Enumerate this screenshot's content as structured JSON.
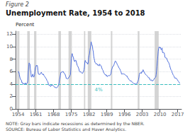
{
  "chart_data": {
    "type": "line",
    "subtitle": "Figure 2",
    "title": "Unemployment Rate, 1954 to 2018",
    "ylabel": "Percent",
    "note": "NOTE: Gray bars indicate recessions as determined by the NBER.\nSOURCE: Bureau of Labor Statistics and Haver Analytics.",
    "xlim": [
      1953.0,
      2018.5
    ],
    "xticks": [
      1954,
      1961,
      1968,
      1975,
      1982,
      1989,
      1996,
      2003,
      2010,
      2017
    ],
    "ylim": [
      0,
      12.5
    ],
    "yticks": [
      0,
      2,
      4,
      6,
      8,
      10,
      12
    ],
    "grid": true,
    "reference_line": {
      "y": 4,
      "label": "4%",
      "color": "#3bbfbf"
    },
    "recessions": {
      "color": "#cccccc",
      "ranges": [
        [
          1953.6,
          1954.5
        ],
        [
          1957.6,
          1958.6
        ],
        [
          1960.3,
          1961.2
        ],
        [
          1969.9,
          1970.9
        ],
        [
          1973.9,
          1975.2
        ],
        [
          1980.0,
          1980.5
        ],
        [
          1981.5,
          1982.9
        ],
        [
          1990.6,
          1991.2
        ],
        [
          2001.2,
          2001.9
        ],
        [
          2007.9,
          2009.5
        ]
      ]
    },
    "x": [
      1954.0,
      1954.17,
      1954.33,
      1954.5,
      1954.67,
      1954.83,
      1955.0,
      1955.17,
      1955.33,
      1955.5,
      1955.67,
      1955.83,
      1956.0,
      1956.17,
      1956.33,
      1956.5,
      1956.67,
      1956.83,
      1957.0,
      1957.17,
      1957.33,
      1957.5,
      1957.67,
      1957.83,
      1958.0,
      1958.17,
      1958.33,
      1958.5,
      1958.67,
      1958.83,
      1959.0,
      1959.17,
      1959.33,
      1959.5,
      1959.67,
      1959.83,
      1960.0,
      1960.17,
      1960.33,
      1960.5,
      1960.67,
      1960.83,
      1961.0,
      1961.17,
      1961.33,
      1961.5,
      1961.67,
      1961.83,
      1962.0,
      1962.17,
      1962.33,
      1962.5,
      1962.67,
      1962.83,
      1963.0,
      1963.17,
      1963.33,
      1963.5,
      1963.67,
      1963.83,
      1964.0,
      1964.17,
      1964.33,
      1964.5,
      1964.67,
      1964.83,
      1965.0,
      1965.17,
      1965.33,
      1965.5,
      1965.67,
      1965.83,
      1966.0,
      1966.17,
      1966.33,
      1966.5,
      1966.67,
      1966.83,
      1967.0,
      1967.17,
      1967.33,
      1967.5,
      1967.67,
      1967.83,
      1968.0,
      1968.17,
      1968.33,
      1968.5,
      1968.67,
      1968.83,
      1969.0,
      1969.17,
      1969.33,
      1969.5,
      1969.67,
      1969.83,
      1970.0,
      1970.17,
      1970.33,
      1970.5,
      1970.67,
      1970.83,
      1971.0,
      1971.17,
      1971.33,
      1971.5,
      1971.67,
      1971.83,
      1972.0,
      1972.17,
      1972.33,
      1972.5,
      1972.67,
      1972.83,
      1973.0,
      1973.17,
      1973.33,
      1973.5,
      1973.67,
      1973.83,
      1974.0,
      1974.17,
      1974.33,
      1974.5,
      1974.67,
      1974.83,
      1975.0,
      1975.17,
      1975.33,
      1975.5,
      1975.67,
      1975.83,
      1976.0,
      1976.17,
      1976.33,
      1976.5,
      1976.67,
      1976.83,
      1977.0,
      1977.17,
      1977.33,
      1977.5,
      1977.67,
      1977.83,
      1978.0,
      1978.17,
      1978.33,
      1978.5,
      1978.67,
      1978.83,
      1979.0,
      1979.17,
      1979.33,
      1979.5,
      1979.67,
      1979.83,
      1980.0,
      1980.17,
      1980.33,
      1980.5,
      1980.67,
      1980.83,
      1981.0,
      1981.17,
      1981.33,
      1981.5,
      1981.67,
      1981.83,
      1982.0,
      1982.17,
      1982.33,
      1982.5,
      1982.67,
      1982.83,
      1983.0,
      1983.17,
      1983.33,
      1983.5,
      1983.67,
      1983.83,
      1984.0,
      1984.17,
      1984.33,
      1984.5,
      1984.67,
      1984.83,
      1985.0,
      1985.17,
      1985.33,
      1985.5,
      1985.67,
      1985.83,
      1986.0,
      1986.17,
      1986.33,
      1986.5,
      1986.67,
      1986.83,
      1987.0,
      1987.17,
      1987.33,
      1987.5,
      1987.67,
      1987.83,
      1988.0,
      1988.17,
      1988.33,
      1988.5,
      1988.67,
      1988.83,
      1989.0,
      1989.17,
      1989.33,
      1989.5,
      1989.67,
      1989.83,
      1990.0,
      1990.17,
      1990.33,
      1990.5,
      1990.67,
      1990.83,
      1991.0,
      1991.17,
      1991.33,
      1991.5,
      1991.67,
      1991.83,
      1992.0,
      1992.17,
      1992.33,
      1992.5,
      1992.67,
      1992.83,
      1993.0,
      1993.17,
      1993.33,
      1993.5,
      1993.67,
      1993.83,
      1994.0,
      1994.17,
      1994.33,
      1994.5,
      1994.67,
      1994.83,
      1995.0,
      1995.17,
      1995.33,
      1995.5,
      1995.67,
      1995.83,
      1996.0,
      1996.17,
      1996.33,
      1996.5,
      1996.67,
      1996.83,
      1997.0,
      1997.17,
      1997.33,
      1997.5,
      1997.67,
      1997.83,
      1998.0,
      1998.17,
      1998.33,
      1998.5,
      1998.67,
      1998.83,
      1999.0,
      1999.17,
      1999.33,
      1999.5,
      1999.67,
      1999.83,
      2000.0,
      2000.17,
      2000.33,
      2000.5,
      2000.67,
      2000.83,
      2001.0,
      2001.17,
      2001.33,
      2001.5,
      2001.67,
      2001.83,
      2002.0,
      2002.17,
      2002.33,
      2002.5,
      2002.67,
      2002.83,
      2003.0,
      2003.17,
      2003.33,
      2003.5,
      2003.67,
      2003.83,
      2004.0,
      2004.17,
      2004.33,
      2004.5,
      2004.67,
      2004.83,
      2005.0,
      2005.17,
      2005.33,
      2005.5,
      2005.67,
      2005.83,
      2006.0,
      2006.17,
      2006.33,
      2006.5,
      2006.67,
      2006.83,
      2007.0,
      2007.17,
      2007.33,
      2007.5,
      2007.67,
      2007.83,
      2008.0,
      2008.17,
      2008.33,
      2008.5,
      2008.67,
      2008.83,
      2009.0,
      2009.17,
      2009.33,
      2009.5,
      2009.67,
      2009.83,
      2010.0,
      2010.17,
      2010.33,
      2010.5,
      2010.67,
      2010.83,
      2011.0,
      2011.17,
      2011.33,
      2011.5,
      2011.67,
      2011.83,
      2012.0,
      2012.17,
      2012.33,
      2012.5,
      2012.67,
      2012.83,
      2013.0,
      2013.17,
      2013.33,
      2013.5,
      2013.67,
      2013.83,
      2014.0,
      2014.17,
      2014.33,
      2014.5,
      2014.67,
      2014.83,
      2015.0,
      2015.17,
      2015.33,
      2015.5,
      2015.67,
      2015.83,
      2016.0,
      2016.17,
      2016.33,
      2016.5,
      2016.67,
      2016.83,
      2017.0,
      2017.17,
      2017.33,
      2017.5,
      2017.67,
      2017.83,
      2018.0
    ],
    "values": [
      5.9,
      6.0,
      5.8,
      5.5,
      5.1,
      4.9,
      4.7,
      4.7,
      4.6,
      4.2,
      4.2,
      4.2,
      4.0,
      4.0,
      4.0,
      4.1,
      4.0,
      4.2,
      4.2,
      3.9,
      4.1,
      4.1,
      4.2,
      4.5,
      5.8,
      6.8,
      7.4,
      7.4,
      7.2,
      6.4,
      6.0,
      5.2,
      5.1,
      5.3,
      5.5,
      5.6,
      5.2,
      5.1,
      5.1,
      5.5,
      6.1,
      6.6,
      6.8,
      7.0,
      6.9,
      7.0,
      6.8,
      6.1,
      5.6,
      5.6,
      5.6,
      5.5,
      5.6,
      5.6,
      5.8,
      5.9,
      5.9,
      5.6,
      5.5,
      5.5,
      5.6,
      5.4,
      5.3,
      5.2,
      5.1,
      5.0,
      4.9,
      4.8,
      4.6,
      4.5,
      4.4,
      4.2,
      3.9,
      3.8,
      3.8,
      3.8,
      3.7,
      3.6,
      3.8,
      3.8,
      3.8,
      3.8,
      3.8,
      3.8,
      3.7,
      3.6,
      3.5,
      3.5,
      3.5,
      3.4,
      3.4,
      3.4,
      3.4,
      3.5,
      3.6,
      3.6,
      3.9,
      4.2,
      4.7,
      5.0,
      5.4,
      5.8,
      5.9,
      5.9,
      5.9,
      6.0,
      6.0,
      6.0,
      5.8,
      5.8,
      5.7,
      5.6,
      5.6,
      5.2,
      4.9,
      4.9,
      4.9,
      4.8,
      4.8,
      4.9,
      5.1,
      5.1,
      5.2,
      5.4,
      5.5,
      6.6,
      8.1,
      8.6,
      8.9,
      8.6,
      8.4,
      8.3,
      7.9,
      7.7,
      7.6,
      7.8,
      7.8,
      7.8,
      7.5,
      7.5,
      7.0,
      6.9,
      6.9,
      6.6,
      6.4,
      6.1,
      6.0,
      5.9,
      6.0,
      5.9,
      5.9,
      5.8,
      5.7,
      5.7,
      5.9,
      6.0,
      6.3,
      6.7,
      7.5,
      7.8,
      7.6,
      7.5,
      7.4,
      7.4,
      7.4,
      7.2,
      7.4,
      8.2,
      8.6,
      8.8,
      9.4,
      9.8,
      10.1,
      10.8,
      10.4,
      10.3,
      10.1,
      9.5,
      9.2,
      8.5,
      8.1,
      7.8,
      7.5,
      7.4,
      7.3,
      7.2,
      7.3,
      7.2,
      7.2,
      7.0,
      7.1,
      7.0,
      6.9,
      7.2,
      7.2,
      7.0,
      7.0,
      6.9,
      6.6,
      6.6,
      6.3,
      6.2,
      6.0,
      5.8,
      5.7,
      5.6,
      5.5,
      5.5,
      5.5,
      5.3,
      5.4,
      5.2,
      5.2,
      5.3,
      5.3,
      5.4,
      5.3,
      5.4,
      5.4,
      5.5,
      5.7,
      6.2,
      6.4,
      6.6,
      6.8,
      6.8,
      6.9,
      7.1,
      7.3,
      7.5,
      7.7,
      7.7,
      7.6,
      7.4,
      7.3,
      7.1,
      7.0,
      6.9,
      6.7,
      6.6,
      6.6,
      6.4,
      6.2,
      6.1,
      5.9,
      5.6,
      5.6,
      5.6,
      5.7,
      5.7,
      5.6,
      5.6,
      5.6,
      5.5,
      5.5,
      5.4,
      5.3,
      5.3,
      5.3,
      5.1,
      5.0,
      4.9,
      4.9,
      4.7,
      4.6,
      4.6,
      4.5,
      4.5,
      4.5,
      4.4,
      4.3,
      4.3,
      4.2,
      4.2,
      4.1,
      4.1,
      4.0,
      4.1,
      3.9,
      4.0,
      3.9,
      3.9,
      4.2,
      4.2,
      4.5,
      4.7,
      5.0,
      5.5,
      5.7,
      5.8,
      5.8,
      5.8,
      5.7,
      6.0,
      5.9,
      6.0,
      6.3,
      6.1,
      6.1,
      5.9,
      5.7,
      5.6,
      5.6,
      5.5,
      5.4,
      5.4,
      5.3,
      5.2,
      5.1,
      5.0,
      5.0,
      5.0,
      4.7,
      4.7,
      4.6,
      4.7,
      4.6,
      4.5,
      4.6,
      4.5,
      4.5,
      4.7,
      4.7,
      4.9,
      5.0,
      5.0,
      5.1,
      5.5,
      6.2,
      6.9,
      7.8,
      8.5,
      9.3,
      9.7,
      10.0,
      10.0,
      9.8,
      9.9,
      9.9,
      9.5,
      9.6,
      9.8,
      9.1,
      9.0,
      9.1,
      9.1,
      9.0,
      8.7,
      8.3,
      8.2,
      8.2,
      8.2,
      8.1,
      7.9,
      7.9,
      7.6,
      7.6,
      7.4,
      7.2,
      7.0,
      6.7,
      6.7,
      6.3,
      6.2,
      6.1,
      5.8,
      5.7,
      5.5,
      5.4,
      5.3,
      5.1,
      5.1,
      4.9,
      5.0,
      5.0,
      4.9,
      4.9,
      4.7,
      4.7,
      4.5,
      4.4,
      4.3,
      4.2,
      4.1,
      4.1
    ]
  }
}
